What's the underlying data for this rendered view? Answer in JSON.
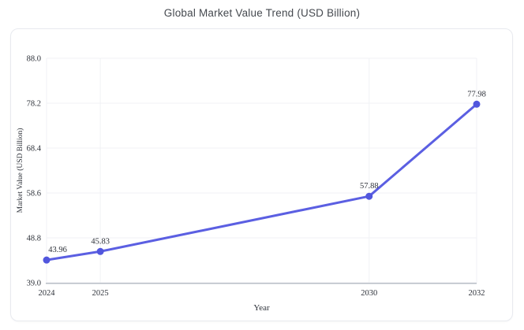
{
  "title": "Global Market Value Trend (USD Billion)",
  "colors": {
    "line": "#5b5fe2",
    "marker": "#5156dd",
    "grid": "#f0f2f5",
    "axis_line": "#b8bec7",
    "tick_text": "#2e323a",
    "label_text": "#2e323a",
    "title_text": "#45494f",
    "card_border": "#e8eaef",
    "background": "#ffffff"
  },
  "chart_data": {
    "type": "line",
    "title": "Global Market Value Trend (USD Billion)",
    "xlabel": "Year",
    "ylabel": "Market Value (USD Billion)",
    "x": [
      2024,
      2025,
      2030,
      2032
    ],
    "values": [
      43.96,
      45.83,
      57.88,
      77.98
    ],
    "point_labels": [
      "43.96",
      "45.83",
      "57.88",
      "77.98"
    ],
    "xtick_labels": [
      "2024",
      "2025",
      "2030",
      "2032"
    ],
    "yticks": [
      39.0,
      48.8,
      58.6,
      68.4,
      78.2,
      88.0
    ],
    "ytick_labels": [
      "39.0",
      "48.8",
      "58.6",
      "68.4",
      "78.2",
      "88.0"
    ],
    "xlim": [
      2024,
      2032
    ],
    "ylim": [
      39.0,
      88.0
    ],
    "grid": true,
    "legend": false
  }
}
